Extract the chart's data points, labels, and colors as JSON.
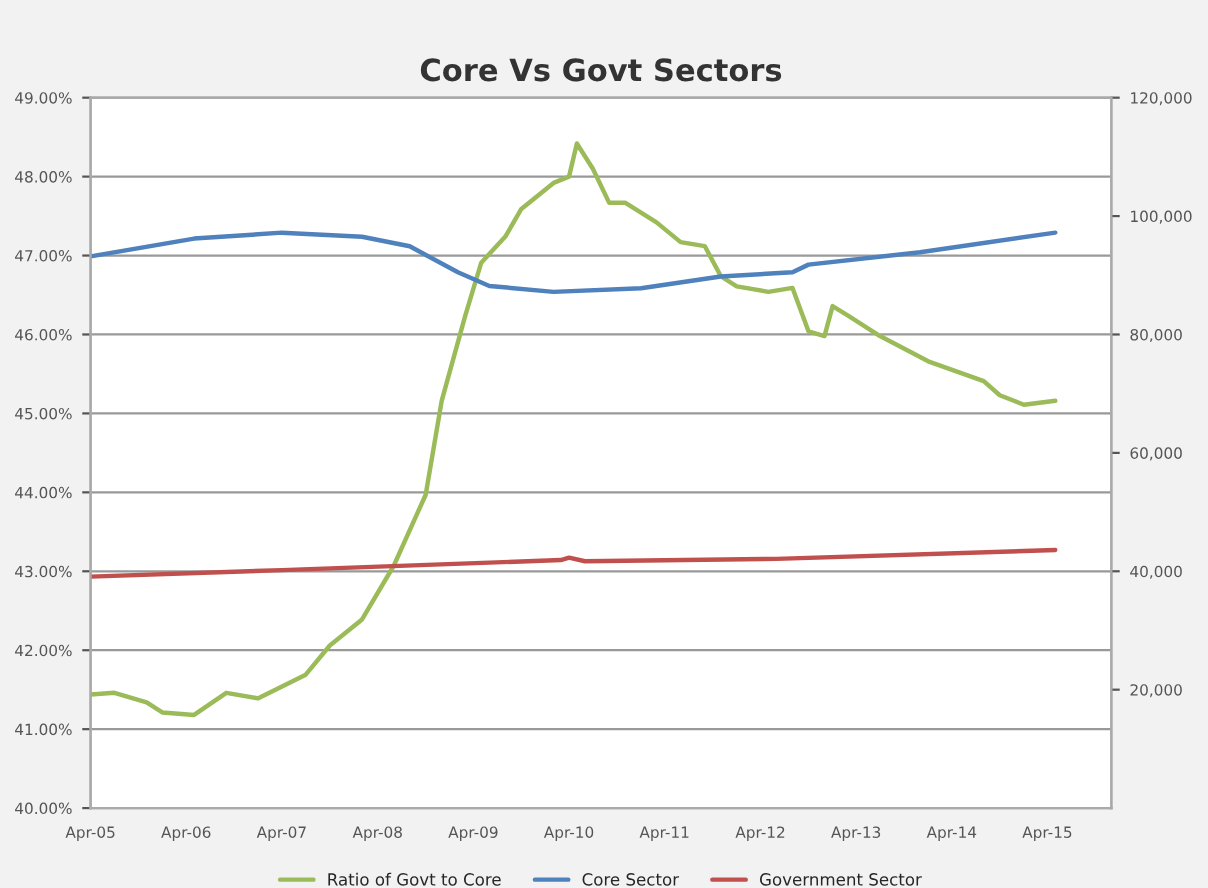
{
  "chart_data": {
    "type": "line",
    "title": "Core Vs Govt Sectors",
    "legend": "bottom",
    "grid": "y",
    "line_style": "solid",
    "marker": "none",
    "xlim": [
      "2005-04",
      "2015-12"
    ],
    "xticks": [
      {
        "value": "2005-04",
        "label": "Apr-05"
      },
      {
        "value": "2006-04",
        "label": "Apr-06"
      },
      {
        "value": "2007-04",
        "label": "Apr-07"
      },
      {
        "value": "2008-04",
        "label": "Apr-08"
      },
      {
        "value": "2009-04",
        "label": "Apr-09"
      },
      {
        "value": "2010-04",
        "label": "Apr-10"
      },
      {
        "value": "2011-04",
        "label": "Apr-11"
      },
      {
        "value": "2012-04",
        "label": "Apr-12"
      },
      {
        "value": "2013-04",
        "label": "Apr-13"
      },
      {
        "value": "2014-04",
        "label": "Apr-14"
      },
      {
        "value": "2015-04",
        "label": "Apr-15"
      }
    ],
    "ylim": [
      40,
      49
    ],
    "yticks": [
      {
        "value": 40,
        "label": "40.00%"
      },
      {
        "value": 41,
        "label": "41.00%"
      },
      {
        "value": 42,
        "label": "42.00%"
      },
      {
        "value": 43,
        "label": "43.00%"
      },
      {
        "value": 44,
        "label": "44.00%"
      },
      {
        "value": 45,
        "label": "45.00%"
      },
      {
        "value": 46,
        "label": "46.00%"
      },
      {
        "value": 47,
        "label": "47.00%"
      },
      {
        "value": 48,
        "label": "48.00%"
      },
      {
        "value": 49,
        "label": "49.00%"
      }
    ],
    "y2lim": [
      0,
      120000
    ],
    "y2ticks": [
      {
        "value": 20000,
        "label": "20,000"
      },
      {
        "value": 40000,
        "label": "40,000"
      },
      {
        "value": 60000,
        "label": "60,000"
      },
      {
        "value": 80000,
        "label": "80,000"
      },
      {
        "value": 100000,
        "label": "100,000"
      },
      {
        "value": 120000,
        "label": "120,000"
      }
    ],
    "series": [
      {
        "name": "Ratio of Govt to Core",
        "color": "#9bbb59",
        "x": [
          "2005-04",
          "2005-07",
          "2005-11",
          "2006-01",
          "2006-05",
          "2006-09",
          "2007-01",
          "2007-07",
          "2007-10",
          "2008-02",
          "2008-06",
          "2008-10",
          "2008-12",
          "2009-03",
          "2009-05",
          "2009-08",
          "2009-10",
          "2010-02",
          "2010-04",
          "2010-05",
          "2010-07",
          "2010-09",
          "2010-11",
          "2011-03",
          "2011-06",
          "2011-09",
          "2011-11",
          "2012-01",
          "2012-05",
          "2012-08",
          "2012-10",
          "2012-12",
          "2013-01",
          "2013-03",
          "2013-07",
          "2014-01",
          "2014-08",
          "2014-10",
          "2015-01",
          "2015-05"
        ],
        "values": [
          41.44,
          41.46,
          41.34,
          41.21,
          41.18,
          41.46,
          41.39,
          41.69,
          42.06,
          42.39,
          43.07,
          43.97,
          45.16,
          46.24,
          46.91,
          47.24,
          47.59,
          47.92,
          48.0,
          48.42,
          48.1,
          47.67,
          47.67,
          47.42,
          47.17,
          47.12,
          46.74,
          46.61,
          46.54,
          46.59,
          46.04,
          45.98,
          46.36,
          46.24,
          45.98,
          45.66,
          45.41,
          45.23,
          45.11,
          45.16
        ]
      },
      {
        "name": "Core Sector",
        "color": "#4f81bd",
        "axis": "y2",
        "x": [
          "2005-04",
          "2006-05",
          "2007-04",
          "2008-02",
          "2008-08",
          "2009-02",
          "2009-06",
          "2010-02",
          "2011-01",
          "2011-11",
          "2012-08",
          "2012-10",
          "2013-12",
          "2015-05"
        ],
        "values": [
          93200,
          96200,
          97200,
          96500,
          94900,
          90500,
          88200,
          87200,
          87800,
          89800,
          90500,
          91800,
          93900,
          97200
        ]
      },
      {
        "name": "Government Sector",
        "color": "#c0504d",
        "axis": "y2",
        "x": [
          "2005-04",
          "2007-04",
          "2010-03",
          "2010-04",
          "2010-06",
          "2012-06",
          "2015-05"
        ],
        "values": [
          39100,
          40200,
          41900,
          42300,
          41700,
          42100,
          43600
        ]
      }
    ]
  }
}
